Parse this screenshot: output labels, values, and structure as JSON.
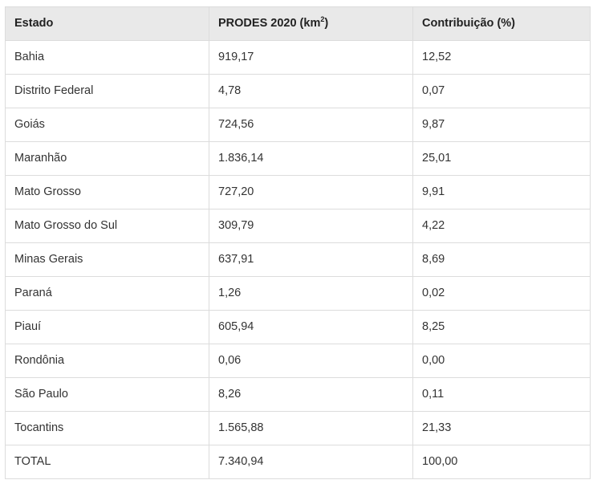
{
  "table": {
    "headers": {
      "estado": "Estado",
      "prodes_prefix": "PRODES 2020 (km",
      "prodes_sup": "2",
      "prodes_suffix": ")",
      "contribuicao": "Contribuição (%)"
    },
    "rows": [
      {
        "estado": "Bahia",
        "prodes": "919,17",
        "contribuicao": "12,52"
      },
      {
        "estado": "Distrito Federal",
        "prodes": "4,78",
        "contribuicao": "0,07"
      },
      {
        "estado": "Goiás",
        "prodes": "724,56",
        "contribuicao": "9,87"
      },
      {
        "estado": "Maranhão",
        "prodes": "1.836,14",
        "contribuicao": "25,01"
      },
      {
        "estado": "Mato Grosso",
        "prodes": "727,20",
        "contribuicao": "9,91"
      },
      {
        "estado": "Mato Grosso do Sul",
        "prodes": "309,79",
        "contribuicao": "4,22"
      },
      {
        "estado": "Minas Gerais",
        "prodes": "637,91",
        "contribuicao": "8,69"
      },
      {
        "estado": "Paraná",
        "prodes": "1,26",
        "contribuicao": "0,02"
      },
      {
        "estado": "Piauí",
        "prodes": "605,94",
        "contribuicao": "8,25"
      },
      {
        "estado": "Rondônia",
        "prodes": "0,06",
        "contribuicao": "0,00"
      },
      {
        "estado": "São Paulo",
        "prodes": "8,26",
        "contribuicao": "0,11"
      },
      {
        "estado": "Tocantins",
        "prodes": "1.565,88",
        "contribuicao": "21,33"
      },
      {
        "estado": "TOTAL",
        "prodes": "7.340,94",
        "contribuicao": "100,00"
      }
    ]
  },
  "colors": {
    "header_background": "#e9e9e9",
    "border": "#dcdcdc",
    "text": "#222222"
  }
}
